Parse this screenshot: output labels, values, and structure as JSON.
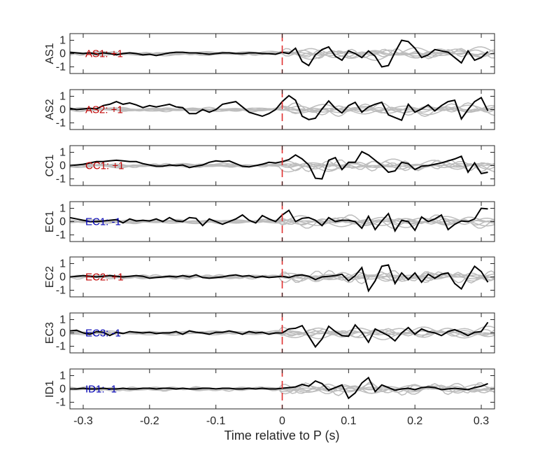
{
  "chart_data": {
    "type": "line",
    "xlabel": "Time relative to P (s)",
    "xlim": [
      -0.32,
      0.32
    ],
    "ylim": [
      -1.5,
      1.5
    ],
    "x_ticks": [
      -0.3,
      -0.2,
      -0.1,
      0,
      0.1,
      0.2,
      0.3
    ],
    "x_tick_labels": [
      "-0.3",
      "-0.2",
      "-0.1",
      "0",
      "0.1",
      "0.2",
      "0.3"
    ],
    "y_ticks": [
      -1,
      0,
      1
    ],
    "y_tick_labels": [
      "-1",
      "0",
      "1"
    ],
    "marker_x": 0,
    "colors": {
      "trace": "#000000",
      "background_traces": "#bdbdbd",
      "marker": "#e03030",
      "positive_label": "#c00000",
      "negative_label": "#0000b4",
      "axes": "#262626"
    },
    "x": [
      -0.32,
      -0.31,
      -0.3,
      -0.29,
      -0.28,
      -0.27,
      -0.26,
      -0.25,
      -0.24,
      -0.23,
      -0.22,
      -0.21,
      -0.2,
      -0.19,
      -0.18,
      -0.17,
      -0.16,
      -0.15,
      -0.14,
      -0.13,
      -0.12,
      -0.11,
      -0.1,
      -0.09,
      -0.08,
      -0.07,
      -0.06,
      -0.05,
      -0.04,
      -0.03,
      -0.02,
      -0.01,
      0.0,
      0.01,
      0.02,
      0.03,
      0.04,
      0.05,
      0.06,
      0.07,
      0.08,
      0.09,
      0.1,
      0.11,
      0.12,
      0.13,
      0.14,
      0.15,
      0.16,
      0.17,
      0.18,
      0.19,
      0.2,
      0.21,
      0.22,
      0.23,
      0.24,
      0.25,
      0.26,
      0.27,
      0.28,
      0.29,
      0.3,
      0.31
    ],
    "panels": [
      {
        "station": "AS1",
        "label": "AS1: +1",
        "polarity": "positive",
        "values": [
          0.1,
          0.05,
          0.0,
          0.05,
          -0.05,
          0.05,
          0.0,
          -0.1,
          0.0,
          0.05,
          0.0,
          -0.1,
          -0.05,
          -0.15,
          -0.05,
          0.05,
          0.1,
          0.1,
          0.05,
          0.05,
          0.0,
          -0.05,
          0.0,
          0.05,
          0.05,
          0.0,
          0.0,
          0.05,
          0.05,
          0.0,
          0.0,
          -0.05,
          0.1,
          0.0,
          0.4,
          -0.6,
          -0.9,
          -0.1,
          0.3,
          0.5,
          -0.2,
          -0.5,
          0.2,
          0.0,
          -0.3,
          0.2,
          -0.2,
          -1.0,
          -0.9,
          0.1,
          1.0,
          0.9,
          0.4,
          -0.3,
          -0.1,
          0.3,
          0.2,
          0.1,
          -0.3,
          -0.7,
          0.2,
          -0.5,
          -0.3,
          0.15
        ]
      },
      {
        "station": "AS2",
        "label": "AS2: +1",
        "polarity": "positive",
        "values": [
          0.1,
          0.0,
          0.05,
          0.1,
          0.05,
          0.3,
          0.4,
          0.6,
          0.4,
          0.5,
          0.35,
          0.15,
          0.3,
          0.2,
          0.3,
          0.4,
          0.2,
          0.15,
          -0.3,
          -0.3,
          0.0,
          -0.2,
          0.0,
          0.4,
          0.5,
          0.6,
          0.2,
          -0.2,
          -0.35,
          -0.5,
          -0.3,
          0.0,
          0.6,
          1.05,
          0.7,
          -0.5,
          -0.75,
          -0.65,
          0.05,
          0.65,
          0.1,
          -0.25,
          0.3,
          0.55,
          -0.2,
          0.2,
          0.4,
          0.55,
          -0.4,
          -0.6,
          -0.8,
          0.4,
          -0.2,
          0.05,
          0.35,
          -0.1,
          0.3,
          0.6,
          0.7,
          -0.7,
          0.0,
          0.6,
          0.9,
          -0.1
        ]
      },
      {
        "station": "CC1",
        "label": "CC1: +1",
        "polarity": "positive",
        "values": [
          0.0,
          0.05,
          0.1,
          0.2,
          0.3,
          0.3,
          0.35,
          0.4,
          0.35,
          0.3,
          0.3,
          0.15,
          0.05,
          -0.05,
          -0.05,
          0.05,
          0.0,
          0.05,
          -0.15,
          -0.05,
          0.05,
          0.25,
          0.35,
          0.3,
          0.35,
          0.15,
          -0.05,
          -0.1,
          0.0,
          0.1,
          0.25,
          0.2,
          0.3,
          0.45,
          0.8,
          0.5,
          0.05,
          -0.95,
          -1.0,
          0.4,
          0.6,
          -0.3,
          0.25,
          0.25,
          1.05,
          0.8,
          0.4,
          0.0,
          -0.5,
          -0.4,
          0.25,
          0.15,
          -0.3,
          -0.05,
          0.0,
          0.1,
          0.2,
          0.35,
          0.5,
          0.7,
          -0.5,
          0.2,
          -0.6,
          -0.5
        ]
      },
      {
        "station": "EC1",
        "label": "EC1: -1",
        "polarity": "negative",
        "values": [
          0.3,
          0.2,
          0.1,
          0.0,
          0.0,
          0.05,
          0.1,
          0.15,
          -0.1,
          0.2,
          0.05,
          0.1,
          0.05,
          0.2,
          0.0,
          0.3,
          0.05,
          0.0,
          0.3,
          0.25,
          -0.3,
          0.2,
          0.0,
          -0.2,
          0.0,
          0.2,
          0.5,
          0.1,
          -0.1,
          0.45,
          0.2,
          0.0,
          0.5,
          0.85,
          0.0,
          0.25,
          0.3,
          0.1,
          -0.3,
          0.3,
          0.0,
          0.1,
          0.1,
          0.0,
          -0.5,
          0.4,
          -0.6,
          0.05,
          0.6,
          -0.7,
          0.1,
          0.0,
          -0.65,
          0.35,
          0.0,
          0.2,
          0.5,
          -0.6,
          -0.2,
          0.05,
          0.0,
          0.2,
          1.0,
          0.95
        ]
      },
      {
        "station": "EC2",
        "label": "EC2: +1",
        "polarity": "positive",
        "values": [
          0.0,
          0.05,
          0.1,
          0.05,
          0.0,
          0.05,
          0.1,
          0.05,
          0.0,
          0.05,
          0.1,
          0.05,
          -0.1,
          -0.05,
          0.0,
          0.05,
          0.0,
          0.1,
          0.0,
          0.15,
          -0.05,
          -0.1,
          -0.05,
          0.0,
          0.1,
          0.15,
          0.05,
          0.1,
          -0.05,
          0.05,
          -0.05,
          0.0,
          0.05,
          -0.05,
          0.1,
          0.15,
          0.05,
          -0.2,
          0.0,
          0.05,
          0.1,
          0.2,
          -0.3,
          0.1,
          0.7,
          -1.05,
          -0.3,
          0.8,
          0.9,
          -0.5,
          0.3,
          -0.2,
          0.3,
          -0.4,
          0.2,
          -0.1,
          0.2,
          0.3,
          -0.5,
          -0.9,
          0.0,
          0.8,
          0.4,
          -0.4
        ]
      },
      {
        "station": "EC3",
        "label": "EC3: -1",
        "polarity": "negative",
        "values": [
          0.15,
          0.2,
          0.0,
          -0.1,
          0.1,
          0.05,
          -0.2,
          0.05,
          -0.05,
          0.1,
          0.05,
          0.0,
          0.05,
          -0.05,
          0.0,
          0.0,
          0.1,
          -0.1,
          0.15,
          0.05,
          0.0,
          -0.1,
          0.05,
          0.05,
          0.15,
          0.05,
          -0.1,
          0.1,
          0.0,
          0.05,
          -0.1,
          0.0,
          0.0,
          0.3,
          0.35,
          0.55,
          -0.25,
          -1.05,
          -0.45,
          0.5,
          0.1,
          -0.2,
          -0.25,
          0.6,
          0.05,
          -0.7,
          0.3,
          0.05,
          -0.2,
          -0.6,
          0.0,
          0.4,
          -0.1,
          0.3,
          0.1,
          0.0,
          -0.2,
          0.1,
          0.25,
          0.05,
          -0.2,
          0.05,
          0.1,
          0.8
        ]
      },
      {
        "station": "ID1",
        "label": "ID1: -1",
        "polarity": "negative",
        "values": [
          0.0,
          0.0,
          0.05,
          0.0,
          0.0,
          0.05,
          0.0,
          0.0,
          0.05,
          0.0,
          0.0,
          0.05,
          0.05,
          0.0,
          0.05,
          0.05,
          0.0,
          0.05,
          0.0,
          0.0,
          0.05,
          0.05,
          0.0,
          0.05,
          0.05,
          0.0,
          0.0,
          0.05,
          0.0,
          0.05,
          0.0,
          0.0,
          0.05,
          0.1,
          0.15,
          0.35,
          0.2,
          0.6,
          0.4,
          -0.1,
          0.1,
          0.3,
          -0.7,
          -0.3,
          0.45,
          0.85,
          -0.2,
          0.3,
          0.1,
          -0.1,
          0.0,
          0.05,
          -0.05,
          0.1,
          0.15,
          0.1,
          -0.05,
          0.0,
          0.05,
          0.0,
          -0.05,
          0.1,
          0.2,
          0.4
        ]
      }
    ]
  }
}
